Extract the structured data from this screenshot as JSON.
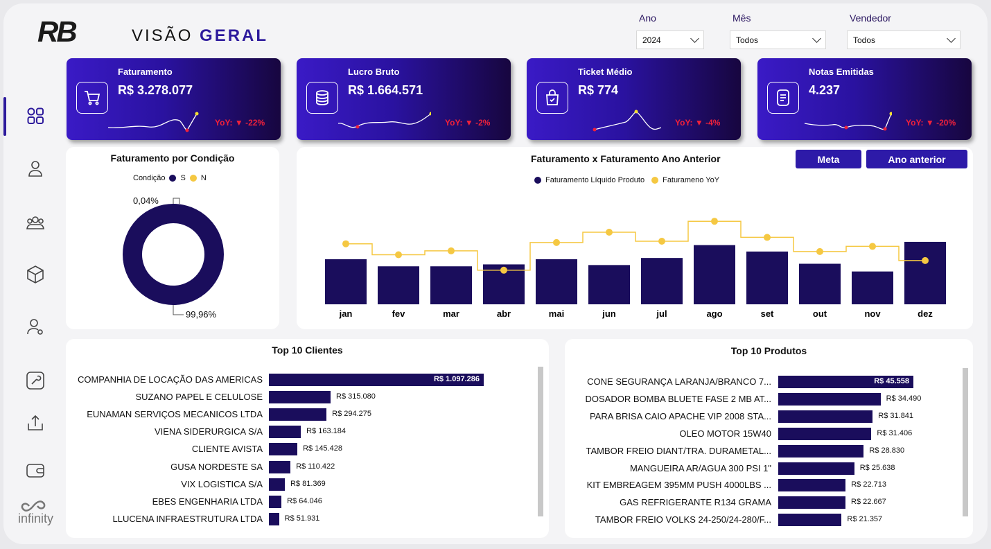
{
  "header": {
    "logo_text": "RB",
    "title_part1": "VISÃO",
    "title_part2": "GERAL"
  },
  "filters": [
    {
      "label": "Ano",
      "value": "2024"
    },
    {
      "label": "Mês",
      "value": "Todos"
    },
    {
      "label": "Vendedor",
      "value": "Todos"
    }
  ],
  "sidebar": {
    "items": [
      "dashboard-icon",
      "user-icon",
      "team-icon",
      "box-icon",
      "user-settings-icon",
      "wrench-icon",
      "upload-icon",
      "wallet-icon"
    ],
    "brand_text": "infinity"
  },
  "kpis": [
    {
      "title": "Faturamento",
      "value": "R$ 3.278.077",
      "yoy": "YoY: ▼ -22%",
      "icon": "cart-icon"
    },
    {
      "title": "Lucro Bruto",
      "value": "R$ 1.664.571",
      "yoy": "YoY: ▼ -2%",
      "icon": "database-icon"
    },
    {
      "title": "Ticket Médio",
      "value": "R$ 774",
      "yoy": "YoY: ▼ -4%",
      "icon": "bag-icon"
    },
    {
      "title": "Notas Emitidas",
      "value": "4.237",
      "yoy": "YoY: ▼ -20%",
      "icon": "receipt-icon"
    }
  ],
  "donut": {
    "title": "Faturamento por Condição",
    "legend_label": "Condição",
    "legend_items": [
      {
        "name": "S",
        "color": "#1a0d5c"
      },
      {
        "name": "N",
        "color": "#f5c842"
      }
    ],
    "label_small": "0,04%",
    "label_large": "99,96%"
  },
  "chart_data": {
    "type": "bar",
    "title": "Faturamento x Faturamento Ano Anterior",
    "categories": [
      "jan",
      "fev",
      "mar",
      "abr",
      "mai",
      "jun",
      "jul",
      "ago",
      "set",
      "out",
      "nov",
      "dez"
    ],
    "series": [
      {
        "name": "Faturamento Líquido Produto",
        "type": "bar",
        "color": "#1a0d5c",
        "values": [
          70,
          59,
          59,
          62,
          70,
          61,
          72,
          92,
          82,
          63,
          51,
          97
        ]
      },
      {
        "name": "Faturameno YoY",
        "type": "step-line",
        "color": "#f5c842",
        "values": [
          94,
          77,
          83,
          53,
          96,
          112,
          98,
          129,
          104,
          82,
          90,
          68
        ]
      }
    ],
    "ylim": [
      0,
      140
    ]
  },
  "buttons": {
    "meta": "Meta",
    "ano_anterior": "Ano anterior"
  },
  "top_clientes": {
    "title": "Top 10 Clientes",
    "max": 1097286,
    "items": [
      {
        "name": "COMPANHIA DE LOCAÇÃO DAS AMERICAS",
        "value": 1097286,
        "label": "R$ 1.097.286"
      },
      {
        "name": "SUZANO PAPEL E CELULOSE",
        "value": 315080,
        "label": "R$ 315.080"
      },
      {
        "name": "EUNAMAN SERVIÇOS MECANICOS LTDA",
        "value": 294275,
        "label": "R$ 294.275"
      },
      {
        "name": "VIENA SIDERURGICA S/A",
        "value": 163184,
        "label": "R$ 163.184"
      },
      {
        "name": "CLIENTE AVISTA",
        "value": 145428,
        "label": "R$ 145.428"
      },
      {
        "name": "GUSA NORDESTE SA",
        "value": 110422,
        "label": "R$ 110.422"
      },
      {
        "name": "VIX LOGISTICA S/A",
        "value": 81369,
        "label": "R$ 81.369"
      },
      {
        "name": "EBES ENGENHARIA LTDA",
        "value": 64046,
        "label": "R$ 64.046"
      },
      {
        "name": "LLUCENA INFRAESTRUTURA LTDA",
        "value": 51931,
        "label": "R$ 51.931"
      }
    ]
  },
  "top_produtos": {
    "title": "Top 10 Produtos",
    "max": 45558,
    "items": [
      {
        "name": "CONE SEGURANÇA LARANJA/BRANCO 7...",
        "value": 45558,
        "label": "R$ 45.558"
      },
      {
        "name": "DOSADOR BOMBA BLUETE FASE 2 MB AT...",
        "value": 34490,
        "label": "R$ 34.490"
      },
      {
        "name": "PARA BRISA CAIO APACHE VIP 2008 STA...",
        "value": 31841,
        "label": "R$ 31.841"
      },
      {
        "name": "OLEO MOTOR 15W40",
        "value": 31406,
        "label": "R$ 31.406"
      },
      {
        "name": "TAMBOR FREIO DIANT/TRA. DURAMETAL...",
        "value": 28830,
        "label": "R$ 28.830"
      },
      {
        "name": "MANGUEIRA AR/AGUA 300 PSI 1\"",
        "value": 25638,
        "label": "R$ 25.638"
      },
      {
        "name": "KIT EMBREAGEM 395MM PUSH 4000LBS ...",
        "value": 22713,
        "label": "R$ 22.713"
      },
      {
        "name": "GAS REFRIGERANTE R134 GRAMA",
        "value": 22667,
        "label": "R$ 22.667"
      },
      {
        "name": "TAMBOR FREIO VOLKS 24-250/24-280/F...",
        "value": 21357,
        "label": "R$ 21.357"
      }
    ]
  }
}
